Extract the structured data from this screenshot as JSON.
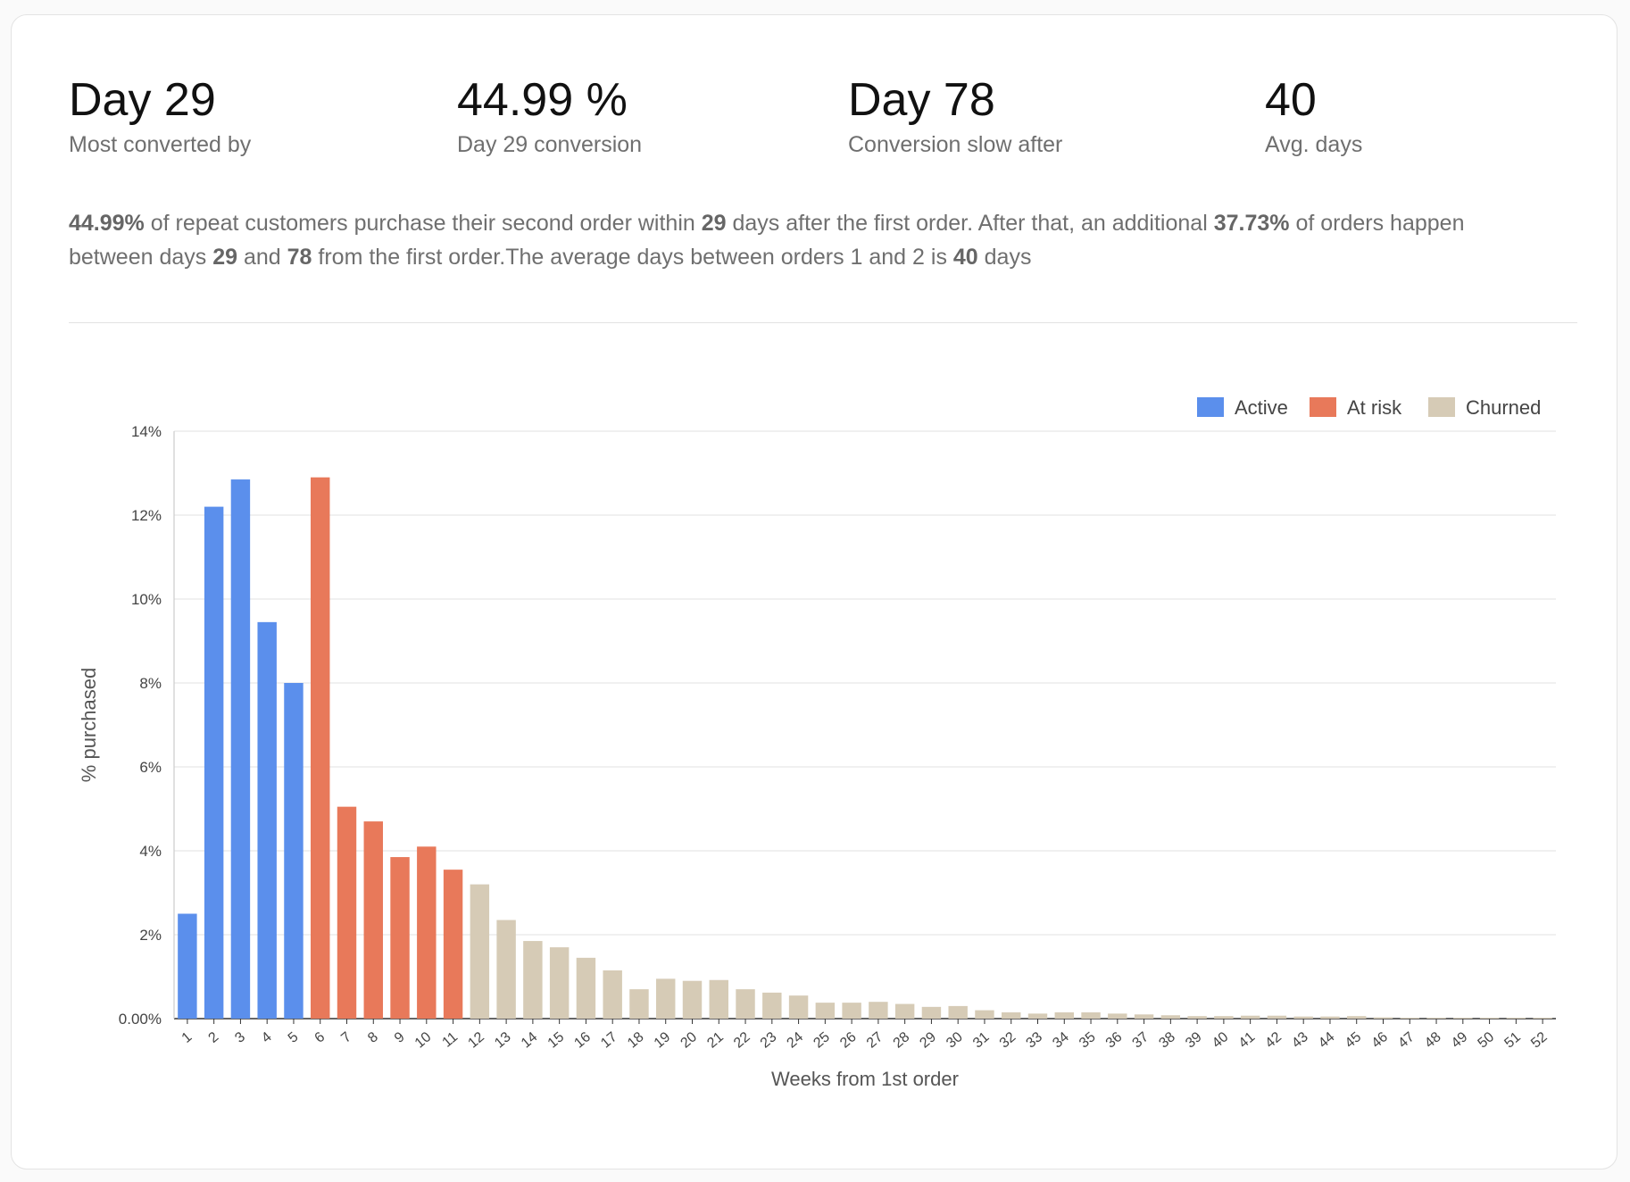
{
  "stats": [
    {
      "value": "Day 29",
      "label": "Most converted by"
    },
    {
      "value": "44.99 %",
      "label": "Day 29 conversion"
    },
    {
      "value": "Day 78",
      "label": "Conversion slow after"
    },
    {
      "value": "40",
      "label": "Avg. days"
    }
  ],
  "summary": {
    "p1": "44.99%",
    "t1": " of repeat customers purchase their second order within ",
    "p2": "29",
    "t2": " days after the first order. After that, an additional ",
    "p3": "37.73%",
    "t3": " of orders happen between days ",
    "p4": "29",
    "t4": " and ",
    "p5": "78",
    "t5": " from the first order.The average days between orders 1 and 2 is ",
    "p6": "40",
    "t6": " days"
  },
  "colors": {
    "active": "#5b8fec",
    "at_risk": "#e8795a",
    "churned": "#d6cbb6"
  },
  "chart_data": {
    "type": "bar",
    "xlabel": "Weeks from 1st order",
    "ylabel": "% purchased",
    "ylim": [
      0,
      14
    ],
    "yticks": [
      "0.00%",
      "2%",
      "4%",
      "6%",
      "8%",
      "10%",
      "12%",
      "14%"
    ],
    "grid": true,
    "legend_position": "top-right",
    "legend": [
      {
        "label": "Active",
        "key": "active"
      },
      {
        "label": "At risk",
        "key": "at_risk"
      },
      {
        "label": "Churned",
        "key": "churned"
      }
    ],
    "categories": [
      "1",
      "2",
      "3",
      "4",
      "5",
      "6",
      "7",
      "8",
      "9",
      "10",
      "11",
      "12",
      "13",
      "14",
      "15",
      "16",
      "17",
      "18",
      "19",
      "20",
      "21",
      "22",
      "23",
      "24",
      "25",
      "26",
      "27",
      "28",
      "29",
      "30",
      "31",
      "32",
      "33",
      "34",
      "35",
      "36",
      "37",
      "38",
      "39",
      "40",
      "41",
      "42",
      "43",
      "44",
      "45",
      "46",
      "47",
      "48",
      "49",
      "50",
      "51",
      "52"
    ],
    "values": [
      2.5,
      12.2,
      12.85,
      9.45,
      8.0,
      12.9,
      5.05,
      4.7,
      3.85,
      4.1,
      3.55,
      3.2,
      2.35,
      1.85,
      1.7,
      1.45,
      1.15,
      0.7,
      0.95,
      0.9,
      0.92,
      0.7,
      0.62,
      0.55,
      0.38,
      0.38,
      0.4,
      0.35,
      0.28,
      0.3,
      0.2,
      0.15,
      0.12,
      0.15,
      0.15,
      0.12,
      0.1,
      0.08,
      0.06,
      0.06,
      0.07,
      0.07,
      0.05,
      0.05,
      0.06,
      0.03,
      0.02,
      0.02,
      0.02,
      0.02,
      0.02,
      0.02
    ],
    "status": [
      "active",
      "active",
      "active",
      "active",
      "active",
      "at_risk",
      "at_risk",
      "at_risk",
      "at_risk",
      "at_risk",
      "at_risk",
      "churned",
      "churned",
      "churned",
      "churned",
      "churned",
      "churned",
      "churned",
      "churned",
      "churned",
      "churned",
      "churned",
      "churned",
      "churned",
      "churned",
      "churned",
      "churned",
      "churned",
      "churned",
      "churned",
      "churned",
      "churned",
      "churned",
      "churned",
      "churned",
      "churned",
      "churned",
      "churned",
      "churned",
      "churned",
      "churned",
      "churned",
      "churned",
      "churned",
      "churned",
      "churned",
      "churned",
      "churned",
      "churned",
      "churned",
      "churned",
      "churned"
    ]
  }
}
